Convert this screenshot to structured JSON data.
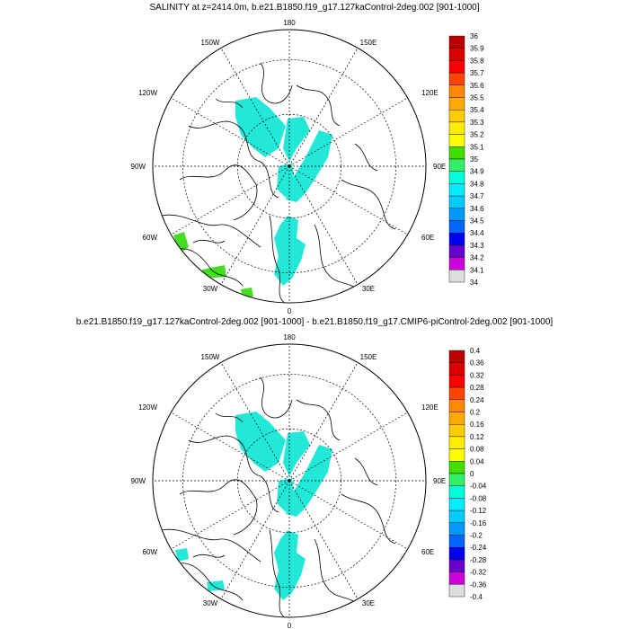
{
  "panels": [
    {
      "title": "SALINITY at z=2414.0m, b.e21.B1850.f19_g17.127kaControl-2deg.002 [901-1000]",
      "colorbar": [
        "36",
        "35.9",
        "35.8",
        "35.7",
        "35.6",
        "35.5",
        "35.4",
        "35.3",
        "35.2",
        "35.1",
        "35",
        "34.9",
        "34.8",
        "34.7",
        "34.6",
        "34.5",
        "34.4",
        "34.3",
        "34.2",
        "34.1",
        "34"
      ]
    },
    {
      "title": "b.e21.B1850.f19_g17.127kaControl-2deg.002 [901-1000] - b.e21.B1850.f19_g17.CMIP6-piControl-2deg.002 [901-1000]",
      "colorbar": [
        "0.4",
        "0.36",
        "0.32",
        "0.28",
        "0.24",
        "0.2",
        "0.16",
        "0.12",
        "0.08",
        "0.04",
        "0",
        "-0.04",
        "-0.08",
        "-0.12",
        "-0.16",
        "-0.2",
        "-0.24",
        "-0.28",
        "-0.32",
        "-0.36",
        "-0.4"
      ]
    }
  ],
  "longitude_labels": {
    "top": "180",
    "top_left": "150W",
    "top_right": "150E",
    "left_upper": "120W",
    "right_upper": "120E",
    "left": "90W",
    "right": "90E",
    "left_lower": "60W",
    "right_lower": "60E",
    "bottom_left": "30W",
    "bottom_right": "30E",
    "bottom": "0"
  },
  "colorbar_colors": [
    "#bb0000",
    "#dd0000",
    "#ff0000",
    "#ff4400",
    "#ff8800",
    "#ffaa00",
    "#ffcc00",
    "#ffee00",
    "#ffff00",
    "#44dd00",
    "#33ee66",
    "#00ffdd",
    "#00eeff",
    "#00ccff",
    "#0099ff",
    "#0066ff",
    "#0000ee",
    "#6600cc",
    "#cc00dd",
    "#dddddd",
    "#777777"
  ],
  "colors": {
    "fill_main": "#22e8d8",
    "fill_green": "#44dd22"
  }
}
